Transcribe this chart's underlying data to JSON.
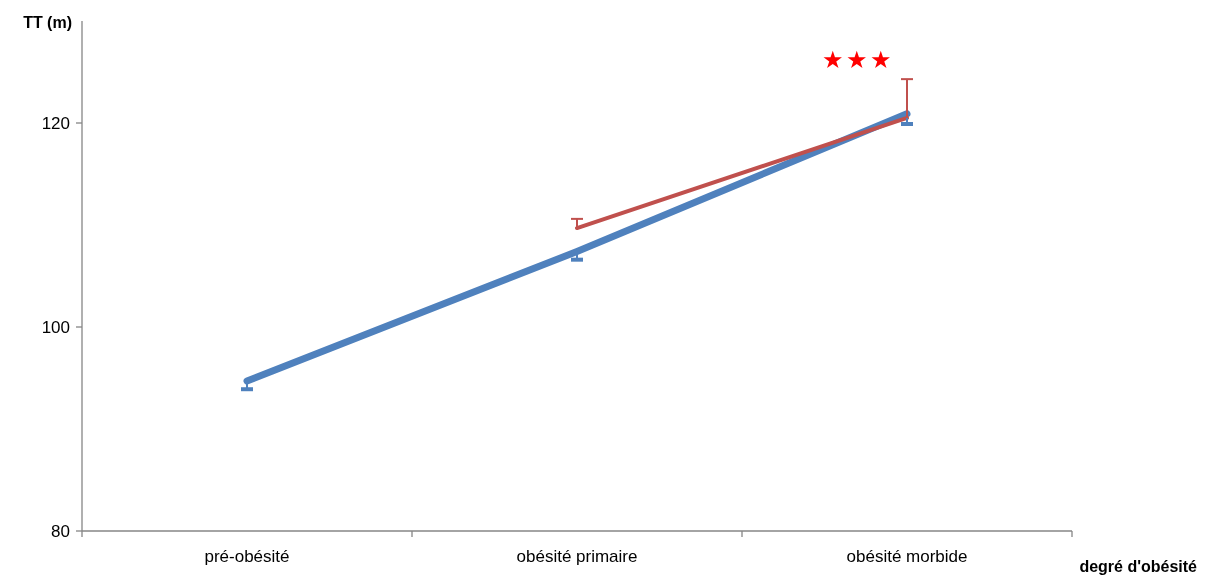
{
  "chart_data": {
    "type": "line",
    "ylabel": "TT (m)",
    "xlabel": "degré d'obésité",
    "categories": [
      "pré-obésité",
      "obésité primaire",
      "obésité morbide"
    ],
    "series": [
      {
        "color": "#4f81bd",
        "values": [
          94.7,
          107.4,
          120.9
        ],
        "errors": [
          [
            93.9,
            94.7
          ],
          [
            106.6,
            107.4
          ],
          [
            119.9,
            120.9
          ]
        ]
      },
      {
        "color": "#c0504d",
        "values": [
          null,
          109.7,
          120.5
        ],
        "errors": [
          null,
          [
            109.7,
            110.6
          ],
          [
            120.5,
            124.3
          ]
        ]
      }
    ],
    "ylim": [
      80,
      130
    ],
    "yticks": [
      80,
      100,
      120
    ],
    "grid": false,
    "marker": "none",
    "line_style": "solid",
    "annotations": [
      "★★★"
    ]
  }
}
